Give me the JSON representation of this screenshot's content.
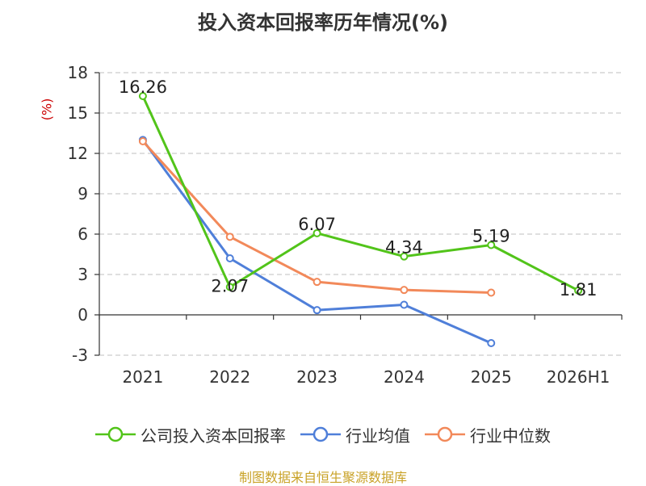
{
  "chart_data": {
    "type": "line",
    "title": "投入资本回报率历年情况(%)",
    "ylabel": "(%)",
    "categories": [
      "2021",
      "2022",
      "2023",
      "2024",
      "2025",
      "2026H1"
    ],
    "ylim": [
      -3,
      18
    ],
    "yticks": [
      -3,
      0,
      3,
      6,
      9,
      12,
      15,
      18
    ],
    "grid": true,
    "legend_position": "bottom",
    "series": [
      {
        "name": "公司投入资本回报率",
        "color": "#52c41a",
        "values": [
          16.26,
          2.07,
          6.07,
          4.34,
          5.19,
          1.81
        ],
        "data_labels": [
          "16.26",
          "2.07",
          "6.07",
          "4.34",
          "5.19",
          "1.81"
        ]
      },
      {
        "name": "行业均值",
        "color": "#4f7fd9",
        "values": [
          13.0,
          4.2,
          0.35,
          0.75,
          -2.1,
          null
        ]
      },
      {
        "name": "行业中位数",
        "color": "#f2895a",
        "values": [
          12.9,
          5.8,
          2.45,
          1.85,
          1.65,
          null
        ]
      }
    ]
  },
  "footer": {
    "source": "制图数据来自恒生聚源数据库"
  }
}
